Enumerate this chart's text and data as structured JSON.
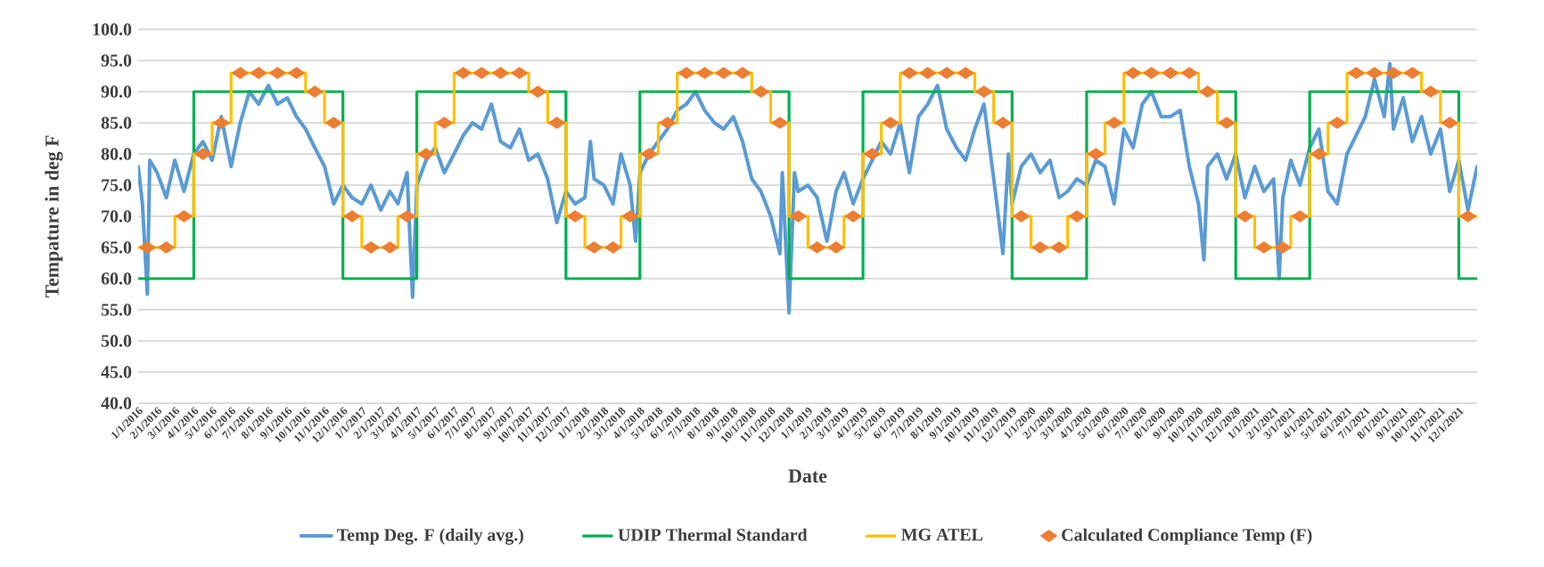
{
  "chart_data": {
    "type": "line",
    "xlabel": "Date",
    "ylabel": "Tempature in deg F",
    "grid": "y",
    "legend": "bottom",
    "ylim": [
      40,
      100
    ],
    "yticks": [
      {
        "value": 40,
        "label": "40.0"
      },
      {
        "value": 45,
        "label": "45.0"
      },
      {
        "value": 50,
        "label": "50.0"
      },
      {
        "value": 55,
        "label": "55.0"
      },
      {
        "value": 60,
        "label": "60.0"
      },
      {
        "value": 65,
        "label": "65.0"
      },
      {
        "value": 70,
        "label": "70.0"
      },
      {
        "value": 75,
        "label": "75.0"
      },
      {
        "value": 80,
        "label": "80.0"
      },
      {
        "value": 85,
        "label": "85.0"
      },
      {
        "value": 90,
        "label": "90.0"
      },
      {
        "value": 95,
        "label": "95.0"
      },
      {
        "value": 100,
        "label": "100.0"
      }
    ],
    "xlim": [
      "2016-01-01",
      "2021-12-31"
    ],
    "xticks": [
      {
        "value": "2016-01-01",
        "label": "1/1/2016"
      },
      {
        "value": "2016-02-01",
        "label": "2/1/2016"
      },
      {
        "value": "2016-03-01",
        "label": "3/1/2016"
      },
      {
        "value": "2016-04-01",
        "label": "4/1/2016"
      },
      {
        "value": "2016-05-01",
        "label": "5/1/2016"
      },
      {
        "value": "2016-06-01",
        "label": "6/1/2016"
      },
      {
        "value": "2016-07-01",
        "label": "7/1/2016"
      },
      {
        "value": "2016-08-01",
        "label": "8/1/2016"
      },
      {
        "value": "2016-09-01",
        "label": "9/1/2016"
      },
      {
        "value": "2016-10-01",
        "label": "10/1/2016"
      },
      {
        "value": "2016-11-01",
        "label": "11/1/2016"
      },
      {
        "value": "2016-12-01",
        "label": "12/1/2016"
      },
      {
        "value": "2017-01-01",
        "label": "1/1/2017"
      },
      {
        "value": "2017-02-01",
        "label": "2/1/2017"
      },
      {
        "value": "2017-03-01",
        "label": "3/1/2017"
      },
      {
        "value": "2017-04-01",
        "label": "4/1/2017"
      },
      {
        "value": "2017-05-01",
        "label": "5/1/2017"
      },
      {
        "value": "2017-06-01",
        "label": "6/1/2017"
      },
      {
        "value": "2017-07-01",
        "label": "7/1/2017"
      },
      {
        "value": "2017-08-01",
        "label": "8/1/2017"
      },
      {
        "value": "2017-09-01",
        "label": "9/1/2017"
      },
      {
        "value": "2017-10-01",
        "label": "10/1/2017"
      },
      {
        "value": "2017-11-01",
        "label": "11/1/2017"
      },
      {
        "value": "2017-12-01",
        "label": "12/1/2017"
      },
      {
        "value": "2018-01-01",
        "label": "1/1/2018"
      },
      {
        "value": "2018-02-01",
        "label": "2/1/2018"
      },
      {
        "value": "2018-03-01",
        "label": "3/1/2018"
      },
      {
        "value": "2018-04-01",
        "label": "4/1/2018"
      },
      {
        "value": "2018-05-01",
        "label": "5/1/2018"
      },
      {
        "value": "2018-06-01",
        "label": "6/1/2018"
      },
      {
        "value": "2018-07-01",
        "label": "7/1/2018"
      },
      {
        "value": "2018-08-01",
        "label": "8/1/2018"
      },
      {
        "value": "2018-09-01",
        "label": "9/1/2018"
      },
      {
        "value": "2018-10-01",
        "label": "10/1/2018"
      },
      {
        "value": "2018-11-01",
        "label": "11/1/2018"
      },
      {
        "value": "2018-12-01",
        "label": "12/1/2018"
      },
      {
        "value": "2019-01-01",
        "label": "1/1/2019"
      },
      {
        "value": "2019-02-01",
        "label": "2/1/2019"
      },
      {
        "value": "2019-03-01",
        "label": "3/1/2019"
      },
      {
        "value": "2019-04-01",
        "label": "4/1/2019"
      },
      {
        "value": "2019-05-01",
        "label": "5/1/2019"
      },
      {
        "value": "2019-06-01",
        "label": "6/1/2019"
      },
      {
        "value": "2019-07-01",
        "label": "7/1/2019"
      },
      {
        "value": "2019-08-01",
        "label": "8/1/2019"
      },
      {
        "value": "2019-09-01",
        "label": "9/1/2019"
      },
      {
        "value": "2019-10-01",
        "label": "10/1/2019"
      },
      {
        "value": "2019-11-01",
        "label": "11/1/2019"
      },
      {
        "value": "2019-12-01",
        "label": "12/1/2019"
      },
      {
        "value": "2020-01-01",
        "label": "1/1/2020"
      },
      {
        "value": "2020-02-01",
        "label": "2/1/2020"
      },
      {
        "value": "2020-03-01",
        "label": "3/1/2020"
      },
      {
        "value": "2020-04-01",
        "label": "4/1/2020"
      },
      {
        "value": "2020-05-01",
        "label": "5/1/2020"
      },
      {
        "value": "2020-06-01",
        "label": "6/1/2020"
      },
      {
        "value": "2020-07-01",
        "label": "7/1/2020"
      },
      {
        "value": "2020-08-01",
        "label": "8/1/2020"
      },
      {
        "value": "2020-09-01",
        "label": "9/1/2020"
      },
      {
        "value": "2020-10-01",
        "label": "10/1/2020"
      },
      {
        "value": "2020-11-01",
        "label": "11/1/2020"
      },
      {
        "value": "2020-12-01",
        "label": "12/1/2020"
      },
      {
        "value": "2021-01-01",
        "label": "1/1/2021"
      },
      {
        "value": "2021-02-01",
        "label": "2/1/2021"
      },
      {
        "value": "2021-03-01",
        "label": "3/1/2021"
      },
      {
        "value": "2021-04-01",
        "label": "4/1/2021"
      },
      {
        "value": "2021-05-01",
        "label": "5/1/2021"
      },
      {
        "value": "2021-06-01",
        "label": "6/1/2021"
      },
      {
        "value": "2021-07-01",
        "label": "7/1/2021"
      },
      {
        "value": "2021-08-01",
        "label": "8/1/2021"
      },
      {
        "value": "2021-09-01",
        "label": "9/1/2021"
      },
      {
        "value": "2021-10-01",
        "label": "10/1/2021"
      },
      {
        "value": "2021-11-01",
        "label": "11/1/2021"
      },
      {
        "value": "2021-12-01",
        "label": "12/1/2021"
      }
    ],
    "series": [
      {
        "name": "Temp Deg. F (daily avg.)",
        "color": "#5b9bd5",
        "marker": "none",
        "x": [
          "2016-01-01",
          "2016-01-08",
          "2016-01-16",
          "2016-01-20",
          "2016-02-01",
          "2016-02-16",
          "2016-03-01",
          "2016-03-16",
          "2016-04-01",
          "2016-04-16",
          "2016-05-01",
          "2016-05-16",
          "2016-06-01",
          "2016-06-16",
          "2016-07-01",
          "2016-07-16",
          "2016-08-01",
          "2016-08-16",
          "2016-09-01",
          "2016-09-16",
          "2016-10-01",
          "2016-10-16",
          "2016-11-01",
          "2016-11-16",
          "2016-12-01",
          "2016-12-16",
          "2017-01-01",
          "2017-01-16",
          "2017-02-01",
          "2017-02-16",
          "2017-03-01",
          "2017-03-16",
          "2017-03-25",
          "2017-04-01",
          "2017-04-16",
          "2017-05-01",
          "2017-05-16",
          "2017-06-01",
          "2017-06-16",
          "2017-07-01",
          "2017-07-16",
          "2017-08-01",
          "2017-08-16",
          "2017-09-01",
          "2017-09-16",
          "2017-10-01",
          "2017-10-16",
          "2017-11-01",
          "2017-11-16",
          "2017-12-01",
          "2017-12-16",
          "2018-01-01",
          "2018-01-10",
          "2018-01-16",
          "2018-02-01",
          "2018-02-16",
          "2018-03-01",
          "2018-03-16",
          "2018-03-25",
          "2018-04-01",
          "2018-04-16",
          "2018-05-01",
          "2018-05-16",
          "2018-06-01",
          "2018-06-16",
          "2018-07-01",
          "2018-07-16",
          "2018-08-01",
          "2018-08-16",
          "2018-09-01",
          "2018-09-16",
          "2018-10-01",
          "2018-10-16",
          "2018-11-01",
          "2018-11-16",
          "2018-11-20",
          "2018-12-01",
          "2018-12-10",
          "2018-12-16",
          "2019-01-01",
          "2019-01-16",
          "2019-02-01",
          "2019-02-16",
          "2019-03-01",
          "2019-03-16",
          "2019-04-01",
          "2019-04-16",
          "2019-05-01",
          "2019-05-16",
          "2019-06-01",
          "2019-06-16",
          "2019-07-01",
          "2019-07-16",
          "2019-08-01",
          "2019-08-16",
          "2019-09-01",
          "2019-09-16",
          "2019-10-01",
          "2019-10-16",
          "2019-11-01",
          "2019-11-16",
          "2019-11-25",
          "2019-12-01",
          "2019-12-16",
          "2020-01-01",
          "2020-01-16",
          "2020-02-01",
          "2020-02-16",
          "2020-03-01",
          "2020-03-16",
          "2020-04-01",
          "2020-04-16",
          "2020-05-01",
          "2020-05-16",
          "2020-06-01",
          "2020-06-16",
          "2020-07-01",
          "2020-07-16",
          "2020-08-01",
          "2020-08-16",
          "2020-09-01",
          "2020-09-16",
          "2020-10-01",
          "2020-10-10",
          "2020-10-16",
          "2020-11-01",
          "2020-11-16",
          "2020-12-01",
          "2020-12-16",
          "2021-01-01",
          "2021-01-16",
          "2021-02-01",
          "2021-02-10",
          "2021-02-16",
          "2021-03-01",
          "2021-03-16",
          "2021-04-01",
          "2021-04-16",
          "2021-05-01",
          "2021-05-16",
          "2021-06-01",
          "2021-06-16",
          "2021-07-01",
          "2021-07-16",
          "2021-08-01",
          "2021-08-10",
          "2021-08-16",
          "2021-09-01",
          "2021-09-16",
          "2021-10-01",
          "2021-10-16",
          "2021-11-01",
          "2021-11-16",
          "2021-12-01",
          "2021-12-16",
          "2021-12-31"
        ],
        "values": [
          78,
          72,
          57.5,
          79,
          77,
          73,
          79,
          74,
          80,
          82,
          79,
          86,
          78,
          85,
          90,
          88,
          91,
          88,
          89,
          86,
          84,
          81,
          78,
          72,
          75,
          73,
          72,
          75,
          71,
          74,
          72,
          77,
          57,
          75,
          79,
          81,
          77,
          80,
          83,
          85,
          84,
          88,
          82,
          81,
          84,
          79,
          80,
          76,
          69,
          74,
          72,
          73,
          82,
          76,
          75,
          72,
          80,
          75,
          66,
          77,
          80,
          82,
          84,
          87,
          88,
          90,
          87,
          85,
          84,
          86,
          82,
          76,
          74,
          70,
          64,
          77,
          54.5,
          77,
          74,
          75,
          73,
          66,
          74,
          77,
          72,
          76,
          79,
          82,
          80,
          85,
          77,
          86,
          88,
          91,
          84,
          81,
          79,
          84,
          88,
          76,
          64,
          80,
          72,
          78,
          80,
          77,
          79,
          73,
          74,
          76,
          75,
          79,
          78,
          72,
          84,
          81,
          88,
          90,
          86,
          86,
          87,
          78,
          72,
          63,
          78,
          80,
          76,
          80,
          73,
          78,
          74,
          76,
          60,
          73,
          79,
          75,
          81,
          84,
          74,
          72,
          80,
          83,
          86,
          92,
          86,
          94.5,
          84,
          89,
          82,
          86,
          80,
          84,
          74,
          79,
          71,
          78
        ]
      },
      {
        "name": "UDIP Thermal Standard",
        "type": "step",
        "color": "#00b050",
        "marker": "none",
        "x": [
          "2016-01-01",
          "2016-04-01",
          "2016-12-01",
          "2017-04-01",
          "2017-12-01",
          "2018-04-01",
          "2018-12-01",
          "2019-04-01",
          "2019-12-01",
          "2020-04-01",
          "2020-12-01",
          "2021-04-01",
          "2021-12-01",
          "2021-12-31"
        ],
        "values": [
          60,
          90,
          60,
          90,
          60,
          90,
          60,
          90,
          60,
          90,
          60,
          90,
          60,
          60
        ]
      },
      {
        "name": "MG ATEL",
        "type": "step",
        "color": "#ffc000",
        "marker": "none",
        "x": [
          "2016-01-01",
          "2016-02-01",
          "2016-03-01",
          "2016-04-01",
          "2016-05-01",
          "2016-06-01",
          "2016-07-01",
          "2016-08-01",
          "2016-09-01",
          "2016-10-01",
          "2016-11-01",
          "2016-12-01",
          "2017-01-01",
          "2017-02-01",
          "2017-03-01",
          "2017-04-01",
          "2017-05-01",
          "2017-06-01",
          "2017-07-01",
          "2017-08-01",
          "2017-09-01",
          "2017-10-01",
          "2017-11-01",
          "2017-12-01",
          "2018-01-01",
          "2018-02-01",
          "2018-03-01",
          "2018-04-01",
          "2018-05-01",
          "2018-06-01",
          "2018-07-01",
          "2018-08-01",
          "2018-09-01",
          "2018-10-01",
          "2018-11-01",
          "2018-12-01",
          "2019-01-01",
          "2019-02-01",
          "2019-03-01",
          "2019-04-01",
          "2019-05-01",
          "2019-06-01",
          "2019-07-01",
          "2019-08-01",
          "2019-09-01",
          "2019-10-01",
          "2019-11-01",
          "2019-12-01",
          "2020-01-01",
          "2020-02-01",
          "2020-03-01",
          "2020-04-01",
          "2020-05-01",
          "2020-06-01",
          "2020-07-01",
          "2020-08-01",
          "2020-09-01",
          "2020-10-01",
          "2020-11-01",
          "2020-12-01",
          "2021-01-01",
          "2021-02-01",
          "2021-03-01",
          "2021-04-01",
          "2021-05-01",
          "2021-06-01",
          "2021-07-01",
          "2021-08-01",
          "2021-09-01",
          "2021-10-01",
          "2021-11-01",
          "2021-12-01",
          "2021-12-31"
        ],
        "values": [
          65,
          65,
          70,
          80,
          85,
          93,
          93,
          93,
          93,
          90,
          85,
          70,
          65,
          65,
          70,
          80,
          85,
          93,
          93,
          93,
          93,
          90,
          85,
          70,
          65,
          65,
          70,
          80,
          85,
          93,
          93,
          93,
          93,
          90,
          85,
          70,
          65,
          65,
          70,
          80,
          85,
          93,
          93,
          93,
          93,
          90,
          85,
          70,
          65,
          65,
          70,
          80,
          85,
          93,
          93,
          93,
          93,
          90,
          85,
          70,
          65,
          65,
          70,
          80,
          85,
          93,
          93,
          93,
          93,
          90,
          85,
          70,
          70
        ]
      },
      {
        "name": "Calculated Compliance Temp (F)",
        "type": "scatter",
        "color": "#ed7d31",
        "marker": "diamond",
        "x": [
          "2016-01-16",
          "2016-02-16",
          "2016-03-16",
          "2016-04-16",
          "2016-05-16",
          "2016-06-16",
          "2016-07-16",
          "2016-08-16",
          "2016-09-16",
          "2016-10-16",
          "2016-11-16",
          "2016-12-16",
          "2017-01-16",
          "2017-02-16",
          "2017-03-16",
          "2017-04-16",
          "2017-05-16",
          "2017-06-16",
          "2017-07-16",
          "2017-08-16",
          "2017-09-16",
          "2017-10-16",
          "2017-11-16",
          "2017-12-16",
          "2018-01-16",
          "2018-02-16",
          "2018-03-16",
          "2018-04-16",
          "2018-05-16",
          "2018-06-16",
          "2018-07-16",
          "2018-08-16",
          "2018-09-16",
          "2018-10-16",
          "2018-11-16",
          "2018-12-16",
          "2019-01-16",
          "2019-02-16",
          "2019-03-16",
          "2019-04-16",
          "2019-05-16",
          "2019-06-16",
          "2019-07-16",
          "2019-08-16",
          "2019-09-16",
          "2019-10-16",
          "2019-11-16",
          "2019-12-16",
          "2020-01-16",
          "2020-02-16",
          "2020-03-16",
          "2020-04-16",
          "2020-05-16",
          "2020-06-16",
          "2020-07-16",
          "2020-08-16",
          "2020-09-16",
          "2020-10-16",
          "2020-11-16",
          "2020-12-16",
          "2021-01-16",
          "2021-02-16",
          "2021-03-16",
          "2021-04-16",
          "2021-05-16",
          "2021-06-16",
          "2021-07-16",
          "2021-08-16",
          "2021-09-16",
          "2021-10-16",
          "2021-11-16",
          "2021-12-16"
        ],
        "values": [
          65,
          65,
          70,
          80,
          85,
          93,
          93,
          93,
          93,
          90,
          85,
          70,
          65,
          65,
          70,
          80,
          85,
          93,
          93,
          93,
          93,
          90,
          85,
          70,
          65,
          65,
          70,
          80,
          85,
          93,
          93,
          93,
          93,
          90,
          85,
          70,
          65,
          65,
          70,
          80,
          85,
          93,
          93,
          93,
          93,
          90,
          85,
          70,
          65,
          65,
          70,
          80,
          85,
          93,
          93,
          93,
          93,
          90,
          85,
          70,
          65,
          65,
          70,
          80,
          85,
          93,
          93,
          93,
          93,
          90,
          85,
          70
        ]
      }
    ]
  }
}
